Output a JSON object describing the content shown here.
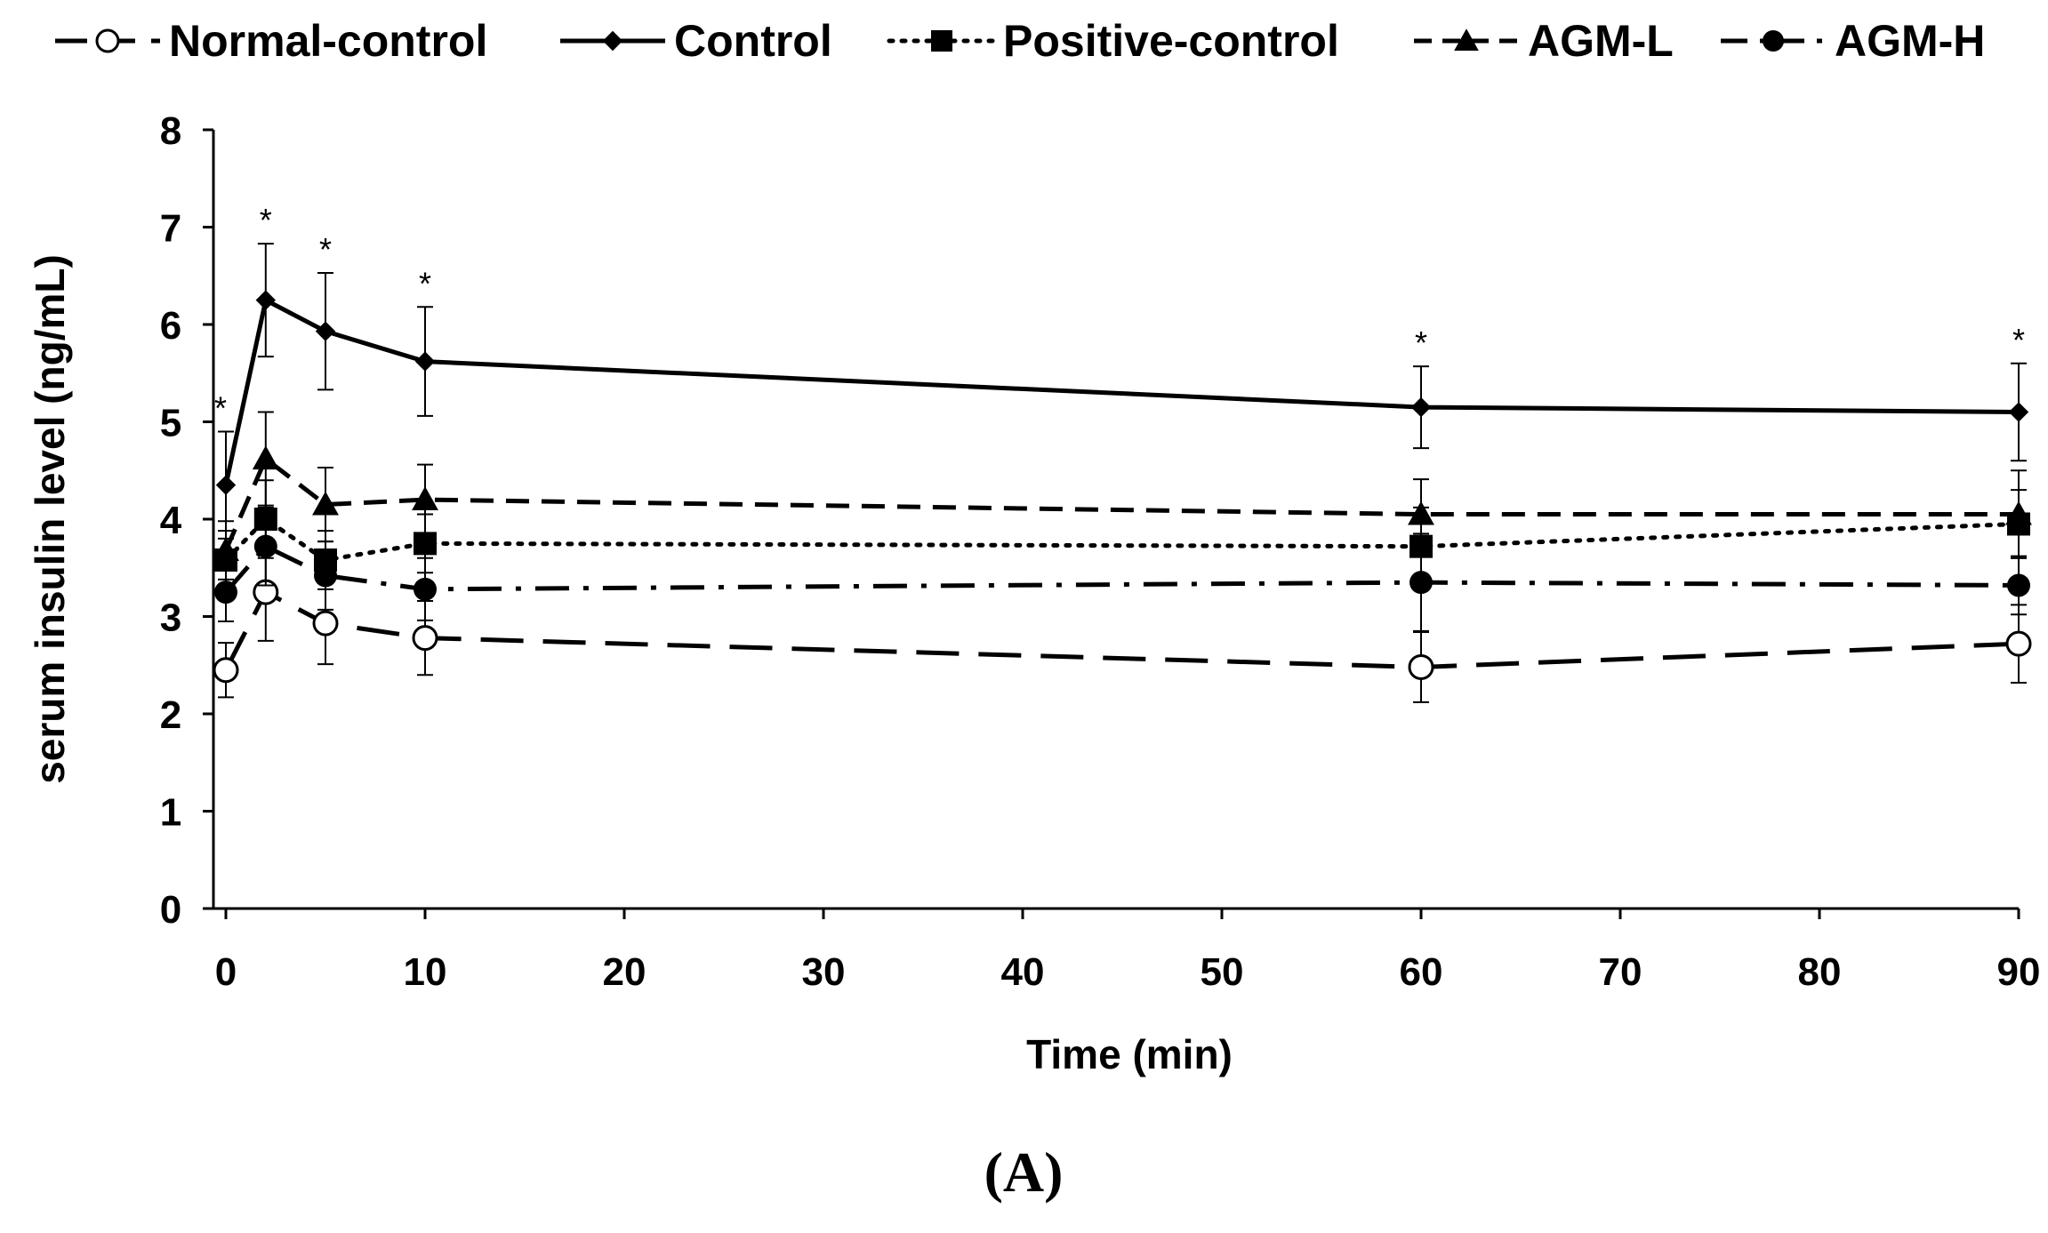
{
  "chart_data": {
    "type": "line",
    "panel_label": "(A)",
    "xlabel": "Time (min)",
    "ylabel": "serum insulin level (ng/mL)",
    "xlim": [
      0,
      90
    ],
    "ylim": [
      0,
      8
    ],
    "x_ticks": [
      "0",
      "10",
      "20",
      "30",
      "40",
      "50",
      "60",
      "70",
      "80",
      "90"
    ],
    "y_ticks": [
      "0",
      "1",
      "2",
      "3",
      "4",
      "5",
      "6",
      "7",
      "8"
    ],
    "x": [
      0,
      2,
      5,
      10,
      60,
      90
    ],
    "legend_position": "top",
    "series": [
      {
        "name": "Normal-control",
        "marker": "open-circle",
        "line": "long-dash",
        "values": [
          2.45,
          3.25,
          2.93,
          2.78,
          2.48,
          2.72
        ],
        "errors": [
          0.28,
          0.5,
          0.42,
          0.38,
          0.36,
          0.4
        ]
      },
      {
        "name": "Control",
        "marker": "diamond",
        "line": "solid",
        "values": [
          4.35,
          6.25,
          5.93,
          5.62,
          5.15,
          5.1
        ],
        "errors": [
          0.55,
          0.58,
          0.6,
          0.56,
          0.42,
          0.5
        ]
      },
      {
        "name": "Positive-control",
        "marker": "square",
        "line": "dotted",
        "values": [
          3.58,
          4.0,
          3.58,
          3.75,
          3.72,
          3.95
        ],
        "errors": [
          0.3,
          0.4,
          0.3,
          0.3,
          0.4,
          0.35
        ]
      },
      {
        "name": "AGM-L",
        "marker": "triangle",
        "line": "dash",
        "values": [
          3.68,
          4.62,
          4.15,
          4.2,
          4.05,
          4.05
        ],
        "errors": [
          0.3,
          0.48,
          0.38,
          0.36,
          0.36,
          0.45
        ]
      },
      {
        "name": "AGM-H",
        "marker": "filled-circle",
        "line": "dash-dot",
        "values": [
          3.25,
          3.72,
          3.42,
          3.28,
          3.35,
          3.32
        ],
        "errors": [
          0.3,
          0.4,
          0.35,
          0.32,
          0.5,
          0.3
        ]
      }
    ],
    "annotations": {
      "text": "*",
      "x": [
        0,
        2,
        5,
        10,
        60,
        90
      ]
    }
  }
}
